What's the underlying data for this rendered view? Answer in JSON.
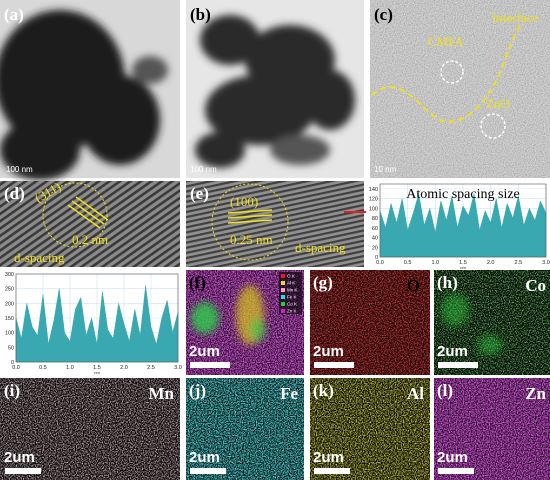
{
  "panels": [
    {
      "label": "(a)",
      "scale": "100 nm"
    },
    {
      "label": "(b)",
      "scale": "100 nm"
    },
    {
      "label": "(c)",
      "scale": "10 nm",
      "notes": [
        "CMFA",
        "Interface",
        "ZnO"
      ]
    },
    {
      "label": "(d)",
      "notes": [
        "(311)",
        "0.2 nm",
        "d-spacing"
      ]
    },
    {
      "label": "(e)",
      "notes": [
        "(100)",
        "0.25 nm",
        "d-spacing"
      ]
    },
    {
      "label": "(f)",
      "scale": "2um",
      "legend": [
        "O K",
        "Al K",
        "Mn K",
        "Fe K",
        "Co K",
        "Zn K"
      ]
    },
    {
      "label": "(g)",
      "element": "O",
      "scale": "2um"
    },
    {
      "label": "(h)",
      "element": "Co",
      "scale": "2um"
    },
    {
      "label": "(i)",
      "element": "Mn",
      "scale": "2um"
    },
    {
      "label": "(j)",
      "element": "Fe",
      "scale": "2um"
    },
    {
      "label": "(k)",
      "element": "Al",
      "scale": "2um"
    },
    {
      "label": "(l)",
      "element": "Zn",
      "scale": "2um"
    }
  ],
  "chart_data": [
    {
      "type": "area",
      "title": "Atomic spacing size",
      "xlabel": "nm",
      "color": "#3aa8b0",
      "grid": true,
      "x": [
        0,
        0.1,
        0.2,
        0.3,
        0.4,
        0.5,
        0.6,
        0.7,
        0.8,
        0.9,
        1,
        1.1,
        1.2,
        1.3,
        1.4,
        1.5,
        1.6,
        1.7,
        1.8,
        1.9,
        2,
        2.1,
        2.2,
        2.3,
        2.4,
        2.5,
        2.6,
        2.7,
        2.8,
        2.9,
        3
      ],
      "values": [
        95,
        60,
        110,
        70,
        120,
        55,
        90,
        130,
        65,
        100,
        50,
        115,
        75,
        125,
        60,
        105,
        85,
        130,
        55,
        95,
        70,
        120,
        60,
        110,
        80,
        125,
        65,
        100,
        75,
        115,
        90
      ],
      "xlim": [
        0,
        3
      ],
      "ylim": [
        0,
        150
      ],
      "xticks": [
        {
          "value": 0,
          "label": "0.0"
        },
        0.5,
        {
          "value": 1,
          "label": "1.0"
        },
        1.5,
        {
          "value": 2,
          "label": "2.0"
        },
        2.5,
        {
          "value": 3,
          "label": "3.0"
        }
      ],
      "yticks": [
        0,
        20,
        40,
        60,
        80,
        100,
        120,
        140
      ]
    },
    {
      "type": "area",
      "xlabel": "nm",
      "color": "#3aa8b0",
      "grid": true,
      "x": [
        0,
        0.1,
        0.2,
        0.3,
        0.4,
        0.5,
        0.6,
        0.7,
        0.8,
        0.9,
        1,
        1.1,
        1.2,
        1.3,
        1.4,
        1.5,
        1.6,
        1.7,
        1.8,
        1.9,
        2,
        2.1,
        2.2,
        2.3,
        2.4,
        2.5,
        2.6,
        2.7,
        2.8,
        2.9,
        3
      ],
      "values": [
        150,
        80,
        200,
        120,
        90,
        230,
        60,
        140,
        250,
        100,
        70,
        180,
        220,
        90,
        150,
        60,
        240,
        110,
        80,
        200,
        130,
        70,
        180,
        90,
        260,
        120,
        60,
        150,
        210,
        100,
        170
      ],
      "xlim": [
        0,
        3
      ],
      "ylim": [
        0,
        300
      ],
      "xticks": [
        {
          "value": 0,
          "label": "0.0"
        },
        0.5,
        {
          "value": 1,
          "label": "1.0"
        },
        1.5,
        {
          "value": 2,
          "label": "2.0"
        },
        2.5,
        {
          "value": 3,
          "label": "3.0"
        }
      ],
      "yticks": [
        0,
        50,
        100,
        150,
        200,
        250,
        300
      ]
    }
  ]
}
